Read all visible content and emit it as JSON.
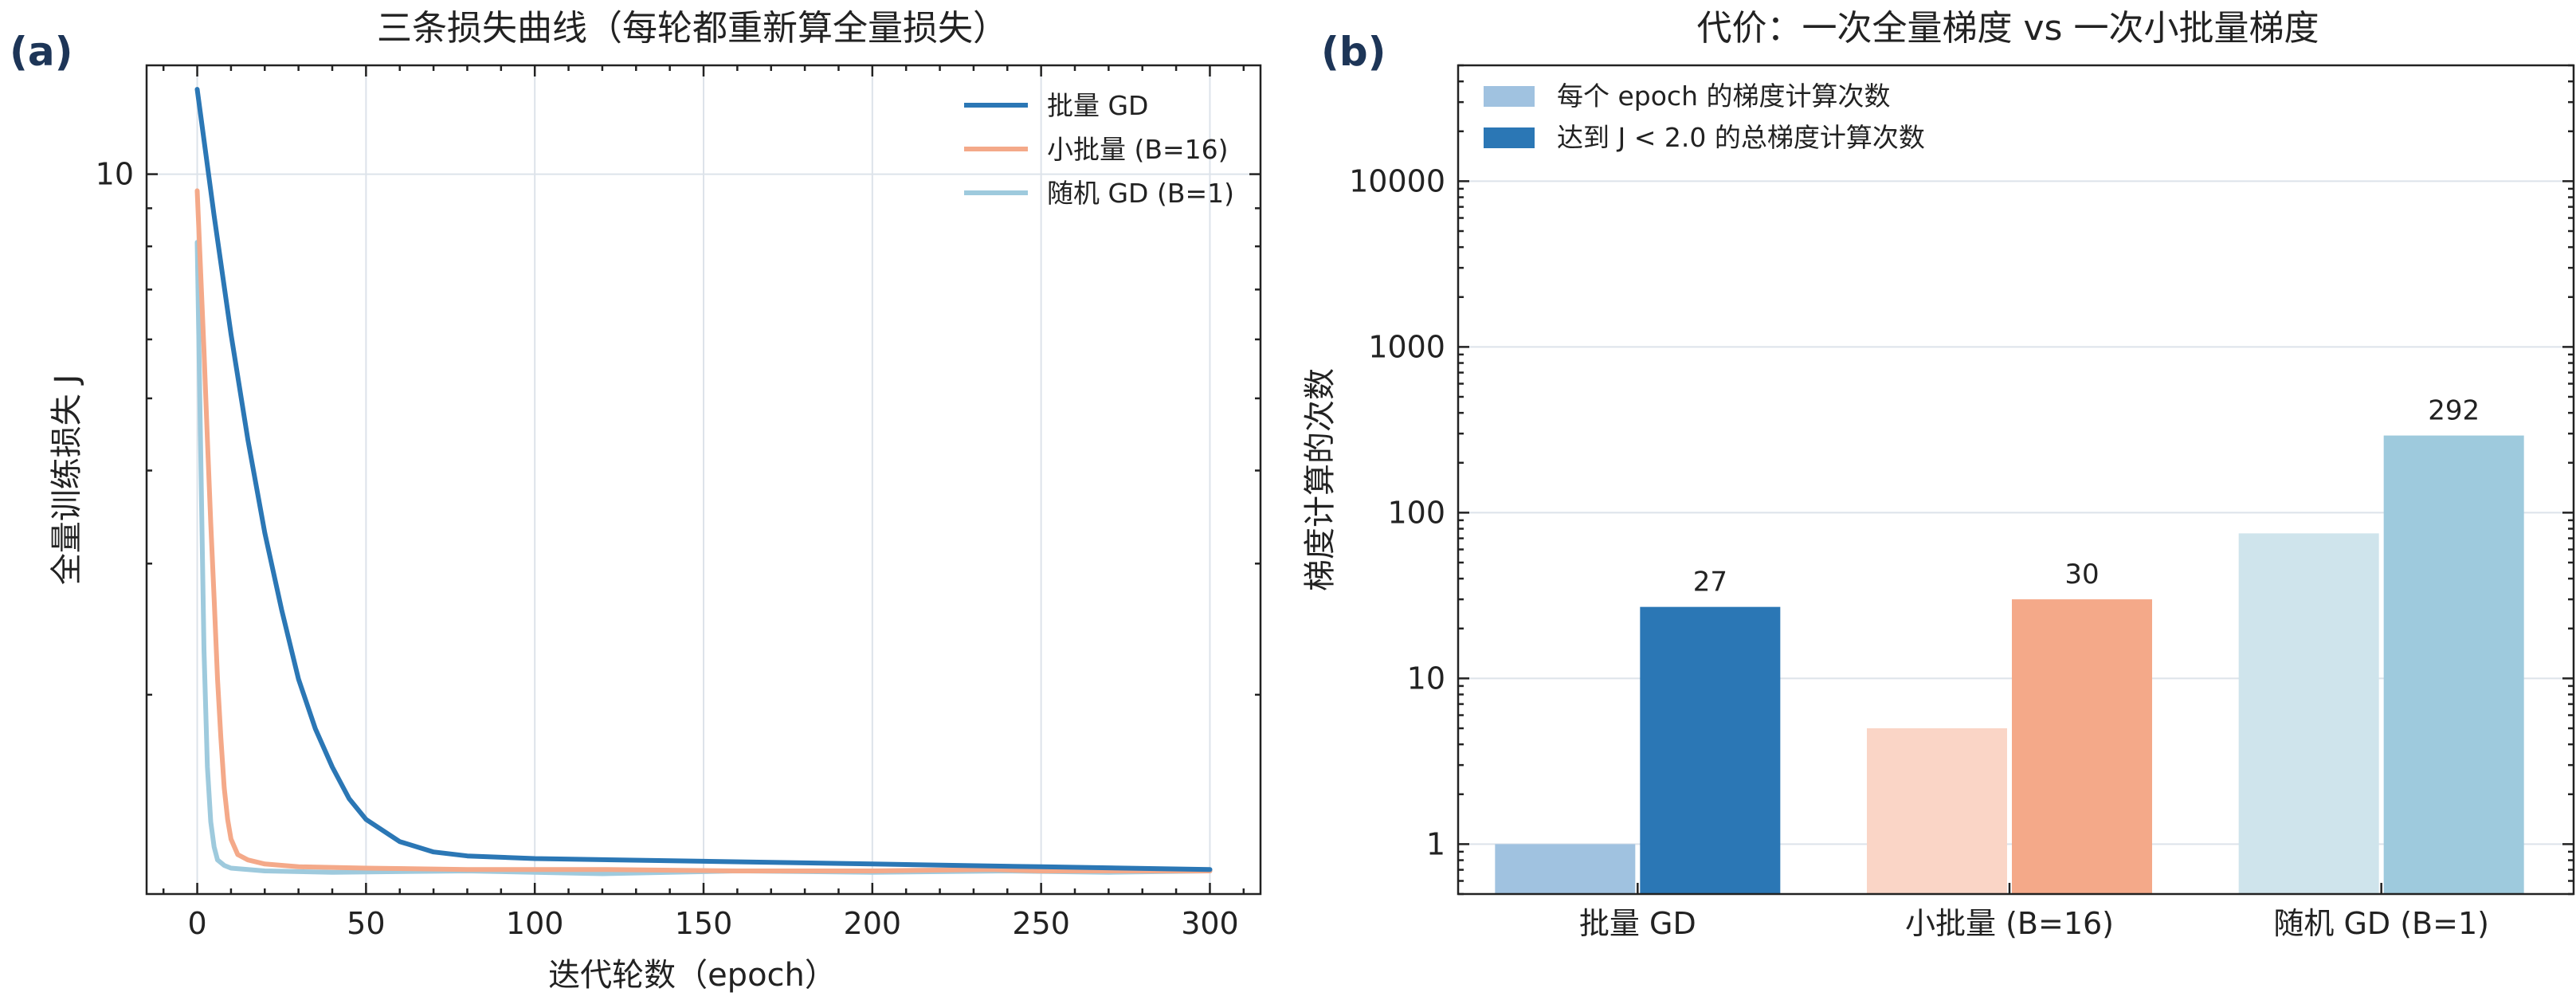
{
  "panels": {
    "a": {
      "label": "(a)"
    },
    "b": {
      "label": "(b)"
    }
  },
  "chart_data": [
    {
      "type": "line",
      "title": "三条损失曲线（每轮都重新算全量损失）",
      "xlabel": "迭代轮数（epoch）",
      "ylabel": "全量训练损失 J",
      "y_scale": "log",
      "xlim": [
        -15,
        315
      ],
      "ylim": [
        1.08,
        14
      ],
      "x_ticks": [
        0,
        50,
        100,
        150,
        200,
        250,
        300
      ],
      "y_ticks": [
        10
      ],
      "grid": true,
      "legend_position": "top-right",
      "series": [
        {
          "name": "批量 GD",
          "color": "#2b77b5",
          "points": [
            [
              0,
              13.0
            ],
            [
              5,
              8.8
            ],
            [
              10,
              6.1
            ],
            [
              15,
              4.4
            ],
            [
              20,
              3.3
            ],
            [
              25,
              2.6
            ],
            [
              30,
              2.1
            ],
            [
              35,
              1.8
            ],
            [
              40,
              1.6
            ],
            [
              45,
              1.45
            ],
            [
              50,
              1.36
            ],
            [
              60,
              1.27
            ],
            [
              70,
              1.23
            ],
            [
              80,
              1.215
            ],
            [
              100,
              1.205
            ],
            [
              150,
              1.195
            ],
            [
              200,
              1.185
            ],
            [
              250,
              1.175
            ],
            [
              300,
              1.165
            ]
          ]
        },
        {
          "name": "小批量 (B=16)",
          "color": "#f4a989",
          "points": [
            [
              0,
              9.5
            ],
            [
              1,
              7.4
            ],
            [
              2,
              5.8
            ],
            [
              3,
              4.4
            ],
            [
              4,
              3.4
            ],
            [
              5,
              2.7
            ],
            [
              6,
              2.1
            ],
            [
              7,
              1.75
            ],
            [
              8,
              1.5
            ],
            [
              9,
              1.36
            ],
            [
              10,
              1.28
            ],
            [
              12,
              1.22
            ],
            [
              15,
              1.2
            ],
            [
              20,
              1.185
            ],
            [
              30,
              1.175
            ],
            [
              50,
              1.17
            ],
            [
              80,
              1.165
            ],
            [
              120,
              1.165
            ],
            [
              160,
              1.16
            ],
            [
              200,
              1.16
            ],
            [
              235,
              1.165
            ],
            [
              250,
              1.16
            ],
            [
              300,
              1.16
            ]
          ]
        },
        {
          "name": "随机 GD (B=1)",
          "color": "#9ecadd",
          "points": [
            [
              0,
              8.1
            ],
            [
              1,
              4.3
            ],
            [
              2,
              2.3
            ],
            [
              3,
              1.6
            ],
            [
              4,
              1.35
            ],
            [
              5,
              1.25
            ],
            [
              6,
              1.2
            ],
            [
              8,
              1.18
            ],
            [
              10,
              1.17
            ],
            [
              20,
              1.16
            ],
            [
              40,
              1.155
            ],
            [
              80,
              1.16
            ],
            [
              120,
              1.15
            ],
            [
              160,
              1.16
            ],
            [
              200,
              1.155
            ],
            [
              240,
              1.16
            ],
            [
              270,
              1.155
            ],
            [
              300,
              1.16
            ]
          ]
        }
      ]
    },
    {
      "type": "bar",
      "title": "代价：一次全量梯度 vs 一次小批量梯度",
      "ylabel": "梯度计算的次数",
      "y_scale": "log",
      "ylim": [
        0.5,
        50000
      ],
      "y_ticks": [
        1,
        10,
        100,
        1000,
        10000
      ],
      "grid": true,
      "legend_position": "top-left",
      "categories": [
        "批量 GD",
        "小批量 (B=16)",
        "随机 GD (B=1)"
      ],
      "series": [
        {
          "name": "每个 epoch 的梯度计算次数",
          "values": [
            1,
            5,
            75
          ],
          "colors": [
            "#a0c2e0",
            "#fad5c6",
            "#cfe4ec"
          ]
        },
        {
          "name": "达到 J < 2.0 的总梯度计算次数",
          "values": [
            27,
            30,
            292
          ],
          "colors": [
            "#2b77b5",
            "#f4a989",
            "#9ecadd"
          ]
        }
      ],
      "data_labels": [
        "27",
        "30",
        "292"
      ]
    }
  ]
}
